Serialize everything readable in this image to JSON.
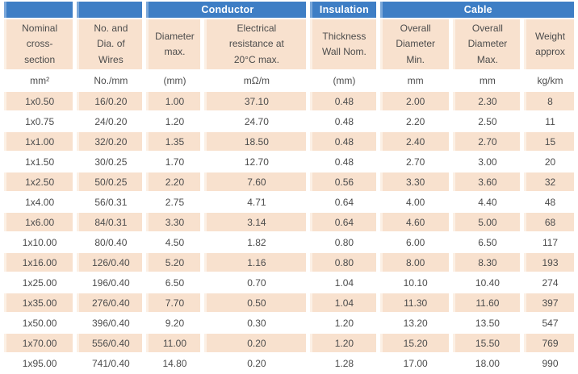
{
  "colors": {
    "group_header_blue": "#3e7ec5",
    "group_header_edge_blue": "#7aa7d9",
    "row_peach": "#f8e1ce",
    "row_peach_edge": "#fcf0e5",
    "text_gray": "#4c4c4c"
  },
  "table": {
    "groups": [
      {
        "label": "",
        "span": 1
      },
      {
        "label": "",
        "span": 1
      },
      {
        "label": "Conductor",
        "span": 2
      },
      {
        "label": "Insulation",
        "span": 1
      },
      {
        "label": "Cable",
        "span": 3
      }
    ],
    "columns": [
      {
        "title": "Nominal\ncross-\nsection",
        "unit": "mm²"
      },
      {
        "title": "No. and\nDia. of\nWires",
        "unit": "No./mm"
      },
      {
        "title": "Diameter\nmax.",
        "unit": "(mm)"
      },
      {
        "title": "Electrical\nresistance at\n20°C max.",
        "unit": "mΩ/m"
      },
      {
        "title": "Thickness\nWall Nom.",
        "unit": "(mm)"
      },
      {
        "title": "Overall\nDiameter\nMin.",
        "unit": "mm"
      },
      {
        "title": "Overall\nDiameter\nMax.",
        "unit": "mm"
      },
      {
        "title": "Weight\napprox",
        "unit": "kg/km"
      }
    ],
    "rows": [
      [
        "1x0.50",
        "16/0.20",
        "1.00",
        "37.10",
        "0.48",
        "2.00",
        "2.30",
        "8"
      ],
      [
        "1x0.75",
        "24/0.20",
        "1.20",
        "24.70",
        "0.48",
        "2.20",
        "2.50",
        "11"
      ],
      [
        "1x1.00",
        "32/0.20",
        "1.35",
        "18.50",
        "0.48",
        "2.40",
        "2.70",
        "15"
      ],
      [
        "1x1.50",
        "30/0.25",
        "1.70",
        "12.70",
        "0.48",
        "2.70",
        "3.00",
        "20"
      ],
      [
        "1x2.50",
        "50/0.25",
        "2.20",
        "7.60",
        "0.56",
        "3.30",
        "3.60",
        "32"
      ],
      [
        "1x4.00",
        "56/0.31",
        "2.75",
        "4.71",
        "0.64",
        "4.00",
        "4.40",
        "48"
      ],
      [
        "1x6.00",
        "84/0.31",
        "3.30",
        "3.14",
        "0.64",
        "4.60",
        "5.00",
        "68"
      ],
      [
        "1x10.00",
        "80/0.40",
        "4.50",
        "1.82",
        "0.80",
        "6.00",
        "6.50",
        "117"
      ],
      [
        "1x16.00",
        "126/0.40",
        "5.20",
        "1.16",
        "0.80",
        "8.00",
        "8.30",
        "193"
      ],
      [
        "1x25.00",
        "196/0.40",
        "6.50",
        "0.70",
        "1.04",
        "10.10",
        "10.40",
        "274"
      ],
      [
        "1x35.00",
        "276/0.40",
        "7.70",
        "0.50",
        "1.04",
        "11.30",
        "11.60",
        "397"
      ],
      [
        "1x50.00",
        "396/0.40",
        "9.20",
        "0.30",
        "1.20",
        "13.20",
        "13.50",
        "547"
      ],
      [
        "1x70.00",
        "556/0.40",
        "11.00",
        "0.20",
        "1.20",
        "15.20",
        "15.50",
        "769"
      ],
      [
        "1x95.00",
        "741/0.40",
        "14.80",
        "0.20",
        "1.28",
        "17.00",
        "18.00",
        "990"
      ]
    ]
  }
}
